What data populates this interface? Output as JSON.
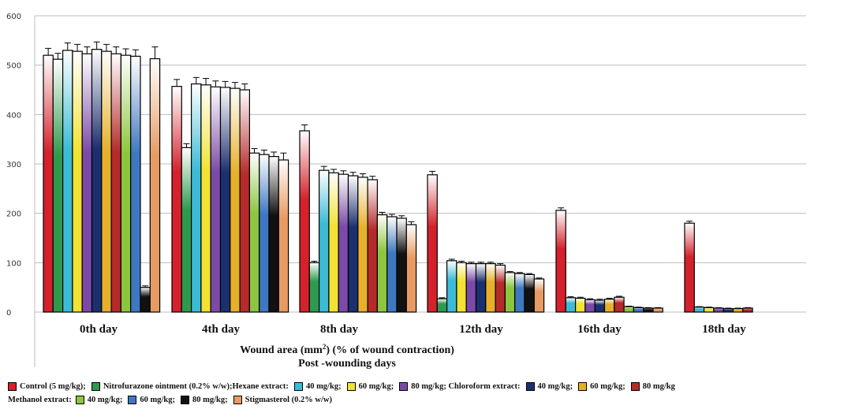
{
  "chart_data": {
    "type": "bar",
    "categories": [
      "0th day",
      "4th day",
      "8th day",
      "12th day",
      "16th day",
      "18th day"
    ],
    "ylim": [
      0,
      600
    ],
    "yticks": [
      0,
      100,
      200,
      300,
      400,
      500,
      600
    ],
    "xlabel_line1_prefix": "Wound area (mm",
    "xlabel_sup": "2",
    "xlabel_line1_suffix": ") (% of wound contraction)",
    "xlabel_line2": "Post -wounding days",
    "grid": true,
    "series": [
      {
        "color": "#d4212b",
        "values": [
          520,
          457,
          367,
          278,
          206,
          180
        ],
        "errors": [
          14,
          14,
          12,
          7,
          5,
          4
        ]
      },
      {
        "color": "#2f9a4e",
        "values": [
          512,
          333,
          100,
          27,
          null,
          null
        ],
        "errors": [
          12,
          8,
          3,
          2,
          null,
          null
        ]
      },
      {
        "color": "#3bbbd6",
        "values": [
          530,
          462,
          287,
          104,
          29,
          10
        ],
        "errors": [
          15,
          13,
          8,
          3,
          2,
          1
        ]
      },
      {
        "color": "#f2e234",
        "values": [
          528,
          460,
          282,
          100,
          28,
          9
        ],
        "errors": [
          14,
          13,
          7,
          3,
          2,
          1
        ]
      },
      {
        "color": "#7b4aa8",
        "values": [
          523,
          456,
          279,
          98,
          25,
          8
        ],
        "errors": [
          14,
          12,
          7,
          3,
          2,
          1
        ]
      },
      {
        "color": "#1c2f6e",
        "values": [
          532,
          455,
          276,
          98,
          24,
          7
        ],
        "errors": [
          15,
          12,
          7,
          3,
          2,
          1
        ]
      },
      {
        "color": "#e6b02a",
        "values": [
          528,
          453,
          273,
          98,
          26,
          7
        ],
        "errors": [
          14,
          12,
          7,
          3,
          2,
          1
        ]
      },
      {
        "color": "#b52a2a",
        "values": [
          523,
          450,
          268,
          95,
          30,
          8
        ],
        "errors": [
          14,
          12,
          7,
          3,
          2,
          1
        ]
      },
      {
        "color": "#8cc63f",
        "values": [
          520,
          322,
          197,
          80,
          11,
          null
        ],
        "errors": [
          13,
          9,
          5,
          2,
          1,
          null
        ]
      },
      {
        "color": "#3f78c0",
        "values": [
          518,
          319,
          193,
          78,
          9,
          null
        ],
        "errors": [
          13,
          9,
          5,
          2,
          1,
          null
        ]
      },
      {
        "color": "#111111",
        "values": [
          50,
          315,
          190,
          76,
          8,
          null
        ],
        "errors": [
          3,
          9,
          5,
          2,
          1,
          null
        ]
      },
      {
        "color": "#e79b62",
        "values": [
          513,
          308,
          177,
          67,
          8,
          null
        ],
        "errors": [
          24,
          14,
          6,
          2,
          1,
          null
        ]
      }
    ]
  },
  "legend": {
    "row1": [
      {
        "type": "item",
        "color": "#d4212b",
        "label": "Control (5 mg/kg);"
      },
      {
        "type": "item",
        "color": "#2f9a4e",
        "label": "Nitrofurazone ointment (0.2% w/w);Hexane extract:"
      },
      {
        "type": "item",
        "color": "#3bbbd6",
        "label": "40 mg/kg;"
      },
      {
        "type": "item",
        "color": "#f2e234",
        "label": "60 mg/kg;"
      },
      {
        "type": "item",
        "color": "#7b4aa8",
        "label": "80 mg/kg; Chloroform extract:"
      },
      {
        "type": "item",
        "color": "#1c2f6e",
        "label": "40 mg/kg;"
      },
      {
        "type": "item",
        "color": "#e6b02a",
        "label": "60 mg/kg;"
      },
      {
        "type": "item",
        "color": "#b52a2a",
        "label": "80 mg/kg"
      }
    ],
    "row2": [
      {
        "type": "text",
        "label": "Methanol extract:"
      },
      {
        "type": "item",
        "color": "#8cc63f",
        "label": "40 mg/kg;"
      },
      {
        "type": "item",
        "color": "#3f78c0",
        "label": "60 mg/kg;"
      },
      {
        "type": "item",
        "color": "#111111",
        "label": "80 mg/kg;"
      },
      {
        "type": "item",
        "color": "#e79b62",
        "label": "Stigmasterol (0.2% w/w)"
      }
    ]
  }
}
